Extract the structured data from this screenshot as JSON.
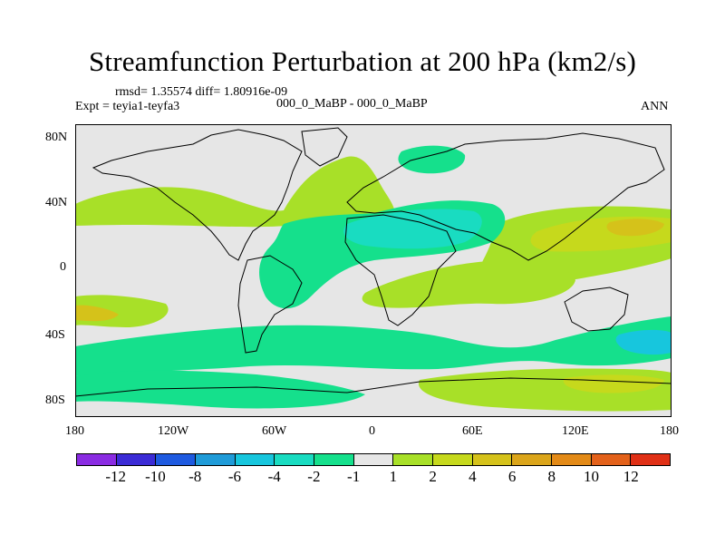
{
  "title": "Streamfunction Perturbation at 200 hPa (km2/s)",
  "stats": "rmsd= 1.35574 diff= 1.80916e-09",
  "experiment": "Expt = teyia1-teyfa3",
  "case": "000_0_MaBP - 000_0_MaBP",
  "period": "ANN",
  "y_ticks": [
    "80N",
    "40N",
    "0",
    "40S",
    "80S"
  ],
  "x_ticks": [
    "180",
    "120W",
    "60W",
    "0",
    "60E",
    "120E",
    "180"
  ],
  "colorbar": {
    "colors": [
      "#8a2be2",
      "#3b2bd6",
      "#1e5ae0",
      "#1f9bd8",
      "#17c6dd",
      "#19dcc1",
      "#15e08c",
      "#e6e6e6",
      "#a8e028",
      "#c6d91c",
      "#d5c21a",
      "#dba51a",
      "#e38a17",
      "#e3611a",
      "#e03016"
    ],
    "labels": [
      "-12",
      "-10",
      "-8",
      "-6",
      "-4",
      "-2",
      "-1",
      "1",
      "2",
      "4",
      "6",
      "8",
      "10",
      "12"
    ]
  },
  "fill_colors": {
    "background": "#e6e6e6",
    "pos1": "#a8e028",
    "pos2": "#c6d91c",
    "pos3": "#d5c21a",
    "neg1": "#15e08c",
    "neg2": "#19dcc1",
    "neg3": "#17c6dd"
  }
}
